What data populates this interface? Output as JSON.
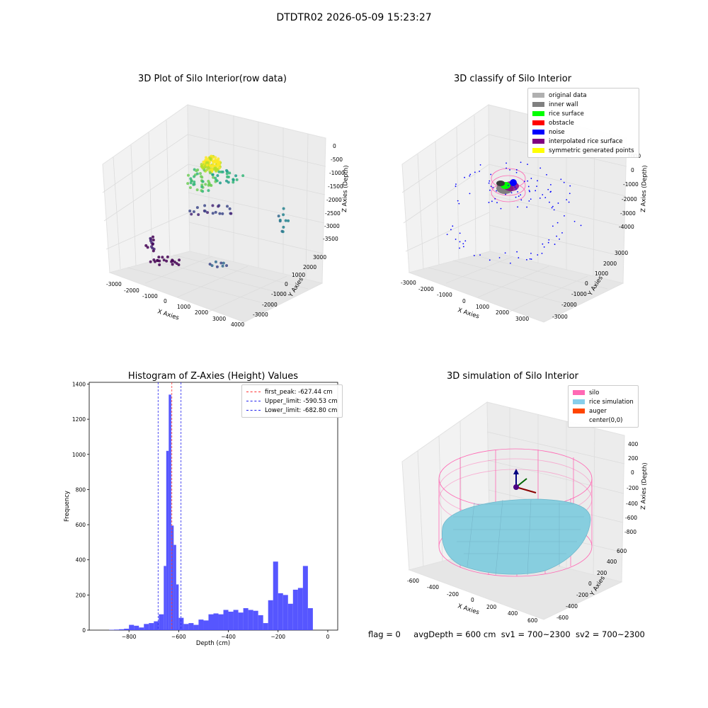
{
  "window": {
    "suptitle": "DTDTR02 2026-05-09 15:23:27"
  },
  "colors": {
    "hist_bar": "#4d4dff",
    "peak_line": "#ff3333",
    "limit_line": "#2222ee",
    "silo": "#ff69b4",
    "rice_sim": "#87cedf",
    "auger": "#ff4500",
    "pane": "#f2f2f2",
    "grid": "#dcdcdc"
  },
  "panel1": {
    "title": "3D Plot of Silo Interior(row data)",
    "xlabel": "X Axies",
    "ylabel": "Y Axies",
    "zlabel": "Z Axies (Depth)",
    "xticks": [
      "-3000",
      "-2000",
      "-1000",
      "0",
      "1000",
      "2000",
      "3000",
      "4000"
    ],
    "yticks": [
      "3000",
      "2000",
      "1000",
      "0",
      "-1000",
      "-2000",
      "-3000"
    ],
    "zticks": [
      "0",
      "-500",
      "-1000",
      "-1500",
      "-2000",
      "-2500",
      "-3000",
      "-3500"
    ]
  },
  "panel2": {
    "title": "3D classify of Silo Interior",
    "xlabel": "X Axies",
    "ylabel": "Y Axies",
    "zlabel": "Z Axies (Depth)",
    "xticks": [
      "-3000",
      "-2000",
      "-1000",
      "0",
      "1000",
      "2000",
      "3000"
    ],
    "yticks": [
      "3000",
      "2000",
      "1000",
      "0",
      "-1000",
      "-2000",
      "-3000"
    ],
    "zticks": [
      "1000",
      "0",
      "-1000",
      "-2000",
      "-3000",
      "-4000"
    ],
    "legend": [
      {
        "label": "original data",
        "color": "#b0b0b0"
      },
      {
        "label": "inner wall",
        "color": "#808080"
      },
      {
        "label": "rice surface",
        "color": "#00ff00"
      },
      {
        "label": "obstacle",
        "color": "#ff0000"
      },
      {
        "label": "noise",
        "color": "#0000ff"
      },
      {
        "label": "interpolated rice surface",
        "color": "#800080"
      },
      {
        "label": "symmetric generated points",
        "color": "#ffff00"
      }
    ]
  },
  "panel4": {
    "title": "3D simulation of Silo Interior",
    "xlabel": "X Axies",
    "ylabel": "Y Axies",
    "zlabel": "Z Axies (Depth)",
    "xticks": [
      "-600",
      "-400",
      "-200",
      "0",
      "200",
      "400",
      "600"
    ],
    "yticks": [
      "600",
      "400",
      "200",
      "0",
      "-200",
      "-400",
      "-600"
    ],
    "zticks": [
      "400",
      "200",
      "0",
      "-200",
      "-400",
      "-600",
      "-800"
    ],
    "legend": [
      {
        "label": "silo",
        "color": "#ff69b4"
      },
      {
        "label": "rice simulation",
        "color": "#87ceeb"
      },
      {
        "label": "auger",
        "color": "#ff4500"
      },
      {
        "label": "center(0,0)",
        "color": ""
      }
    ]
  },
  "status": {
    "flag": "flag = 0",
    "avg": "avgDepth = 600 cm",
    "sv1": "sv1 = 700~2300",
    "sv2": "sv2 = 700~2300"
  },
  "chart_data": {
    "type": "bar",
    "title": "Histogram of Z-Axies (Height) Values",
    "xlabel": "Depth (cm)",
    "ylabel": "Frequency",
    "xlim": [
      -960,
      40
    ],
    "ylim": [
      0,
      1410
    ],
    "xticks": [
      -800,
      -600,
      -400,
      -200,
      0
    ],
    "yticks": [
      0,
      200,
      400,
      600,
      800,
      1000,
      1200,
      1400
    ],
    "bin_edges": [
      -880,
      -860,
      -840,
      -820,
      -800,
      -780,
      -760,
      -740,
      -720,
      -700,
      -680,
      -660,
      -650,
      -640,
      -630,
      -620,
      -610,
      -600,
      -580,
      -560,
      -540,
      -520,
      -500,
      -480,
      -460,
      -440,
      -420,
      -400,
      -380,
      -360,
      -340,
      -320,
      -300,
      -280,
      -260,
      -240,
      -220,
      -200,
      -180,
      -160,
      -140,
      -120,
      -100,
      -80,
      -60,
      -40,
      -20,
      0
    ],
    "values": [
      2,
      3,
      5,
      8,
      30,
      25,
      15,
      35,
      40,
      50,
      90,
      365,
      1020,
      1340,
      595,
      485,
      260,
      70,
      35,
      40,
      30,
      60,
      55,
      90,
      95,
      90,
      115,
      105,
      115,
      100,
      125,
      115,
      110,
      85,
      40,
      170,
      390,
      210,
      200,
      150,
      230,
      240,
      365,
      125,
      0,
      0,
      0
    ],
    "vlines": [
      {
        "label": "first_peak: -627.44 cm",
        "x": -627.44,
        "color": "#ff3333"
      },
      {
        "label": "Upper_limit: -590.53 cm",
        "x": -590.53,
        "color": "#2222ee"
      },
      {
        "label": "Lower_limit: -682.80 cm",
        "x": -682.8,
        "color": "#2222ee"
      }
    ]
  }
}
